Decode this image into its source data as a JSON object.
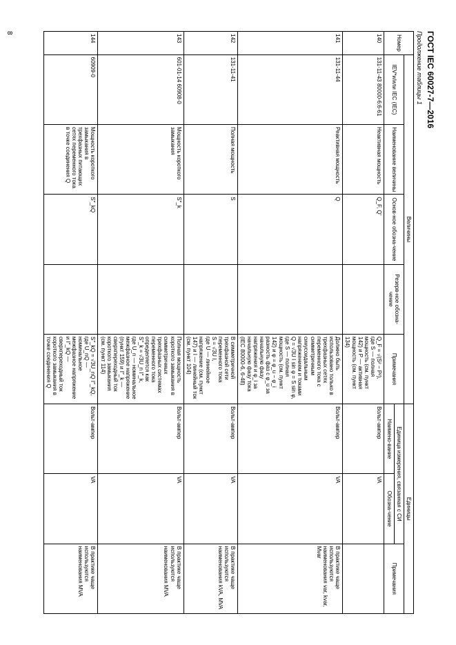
{
  "title": "ГОСТ IEC 60027-7—2016",
  "caption": "Продолжение таблицы 1",
  "pageNumber": "8",
  "groupHeaders": {
    "number": "Номер",
    "quantities": "Величины",
    "units": "Единицы",
    "iev": "IEV*и/или IEC (IEC)",
    "name": "Наименование величины",
    "mainSym": "Основ-ное обозна-чение",
    "resSym": "Резерв-ное обозна-чение",
    "notes": "Примечания",
    "siUnit": "Единица измерения, связанная с СИ",
    "unitName": "Наимено-вание",
    "unitSym": "Обозна-чение",
    "remarks": "Примечания"
  },
  "rows": [
    {
      "num": "140",
      "iev": "131-11-43 80000-6:6-61",
      "name": "Неактивная мощность",
      "sym": "Q_F, Q'",
      "rsym": "",
      "note": "Q_F = √(S² − P²),\nгде S — полная мощность (см. пункт 142) и P — активная мощность (см. пункт 134)",
      "uname": "Вольт-ампер",
      "usym": "VA",
      "rem": ""
    },
    {
      "num": "141",
      "iev": "131-11-44",
      "name": "Реактивная мощность",
      "sym": "Q",
      "rsym": "",
      "note": "Должно быть использовано только в трехфазных сетях переменного тока с симметричным синусоидальным напряжением и токами\nQ = √3U I sin φ = S sin φ,\nгде S — полная мощность (см. пункт 142) и φ = φ_u − φ_i разность фаз с φ_u за начальную фазу напряжения и φ_i за начальную фазу тока (IEC 80000-6, 6-48)",
      "uname": "Вольт-ампер",
      "usym": "VA",
      "rem": "В практике чаще используются наименования var, kvar, Mvar"
    },
    {
      "num": "142",
      "iev": "131-11-41",
      "name": "Полная мощность",
      "sym": "S",
      "rsym": "",
      "note": "В симметричной трехфазной сети переменного тока\nS = √3U I,\nгде U — линейное напряжение (см. пункт 147) и I — линейный ток (см. пункт 104)",
      "uname": "Вольт-ампер",
      "usym": "VA",
      "rem": "В практике чаще используются наименования kVA, MVA"
    },
    {
      "num": "143",
      "iev": "601-01-14 60908-0",
      "name": "Мощность короткого замыкания",
      "sym": "S″_k",
      "rsym": "",
      "note": "Полная мощность короткого замыкания в симметричных трехфазных системах переменного тока определяется как\nS″_k = √3U_n I″_k,\nгде U_n — номинальное межфазное напряжение (пункт 159) и I″_k — сверхпереходный ток короткого замыкания (см. пункт 114)",
      "uname": "Вольт-ампер",
      "usym": "VA",
      "rem": "В практике чаще используются наименования MVA"
    },
    {
      "num": "144",
      "iev": "60909-0",
      "name": "Мощность короткого замыкания в трехфазных питающих сетях переменного тока в точке соединения Q",
      "sym": "S″_kQ",
      "rsym": "",
      "note": "S″_kQ = √3U_nQ I″_kQ,\nгде U_nQ — номинальное межфазное напряжение и I″_kQ — сверхпереходный ток короткого замыкания в точке соединения Q",
      "uname": "Вольт-ампер",
      "usym": "VA",
      "rem": "В практике чаще используются наименования MVA"
    }
  ]
}
